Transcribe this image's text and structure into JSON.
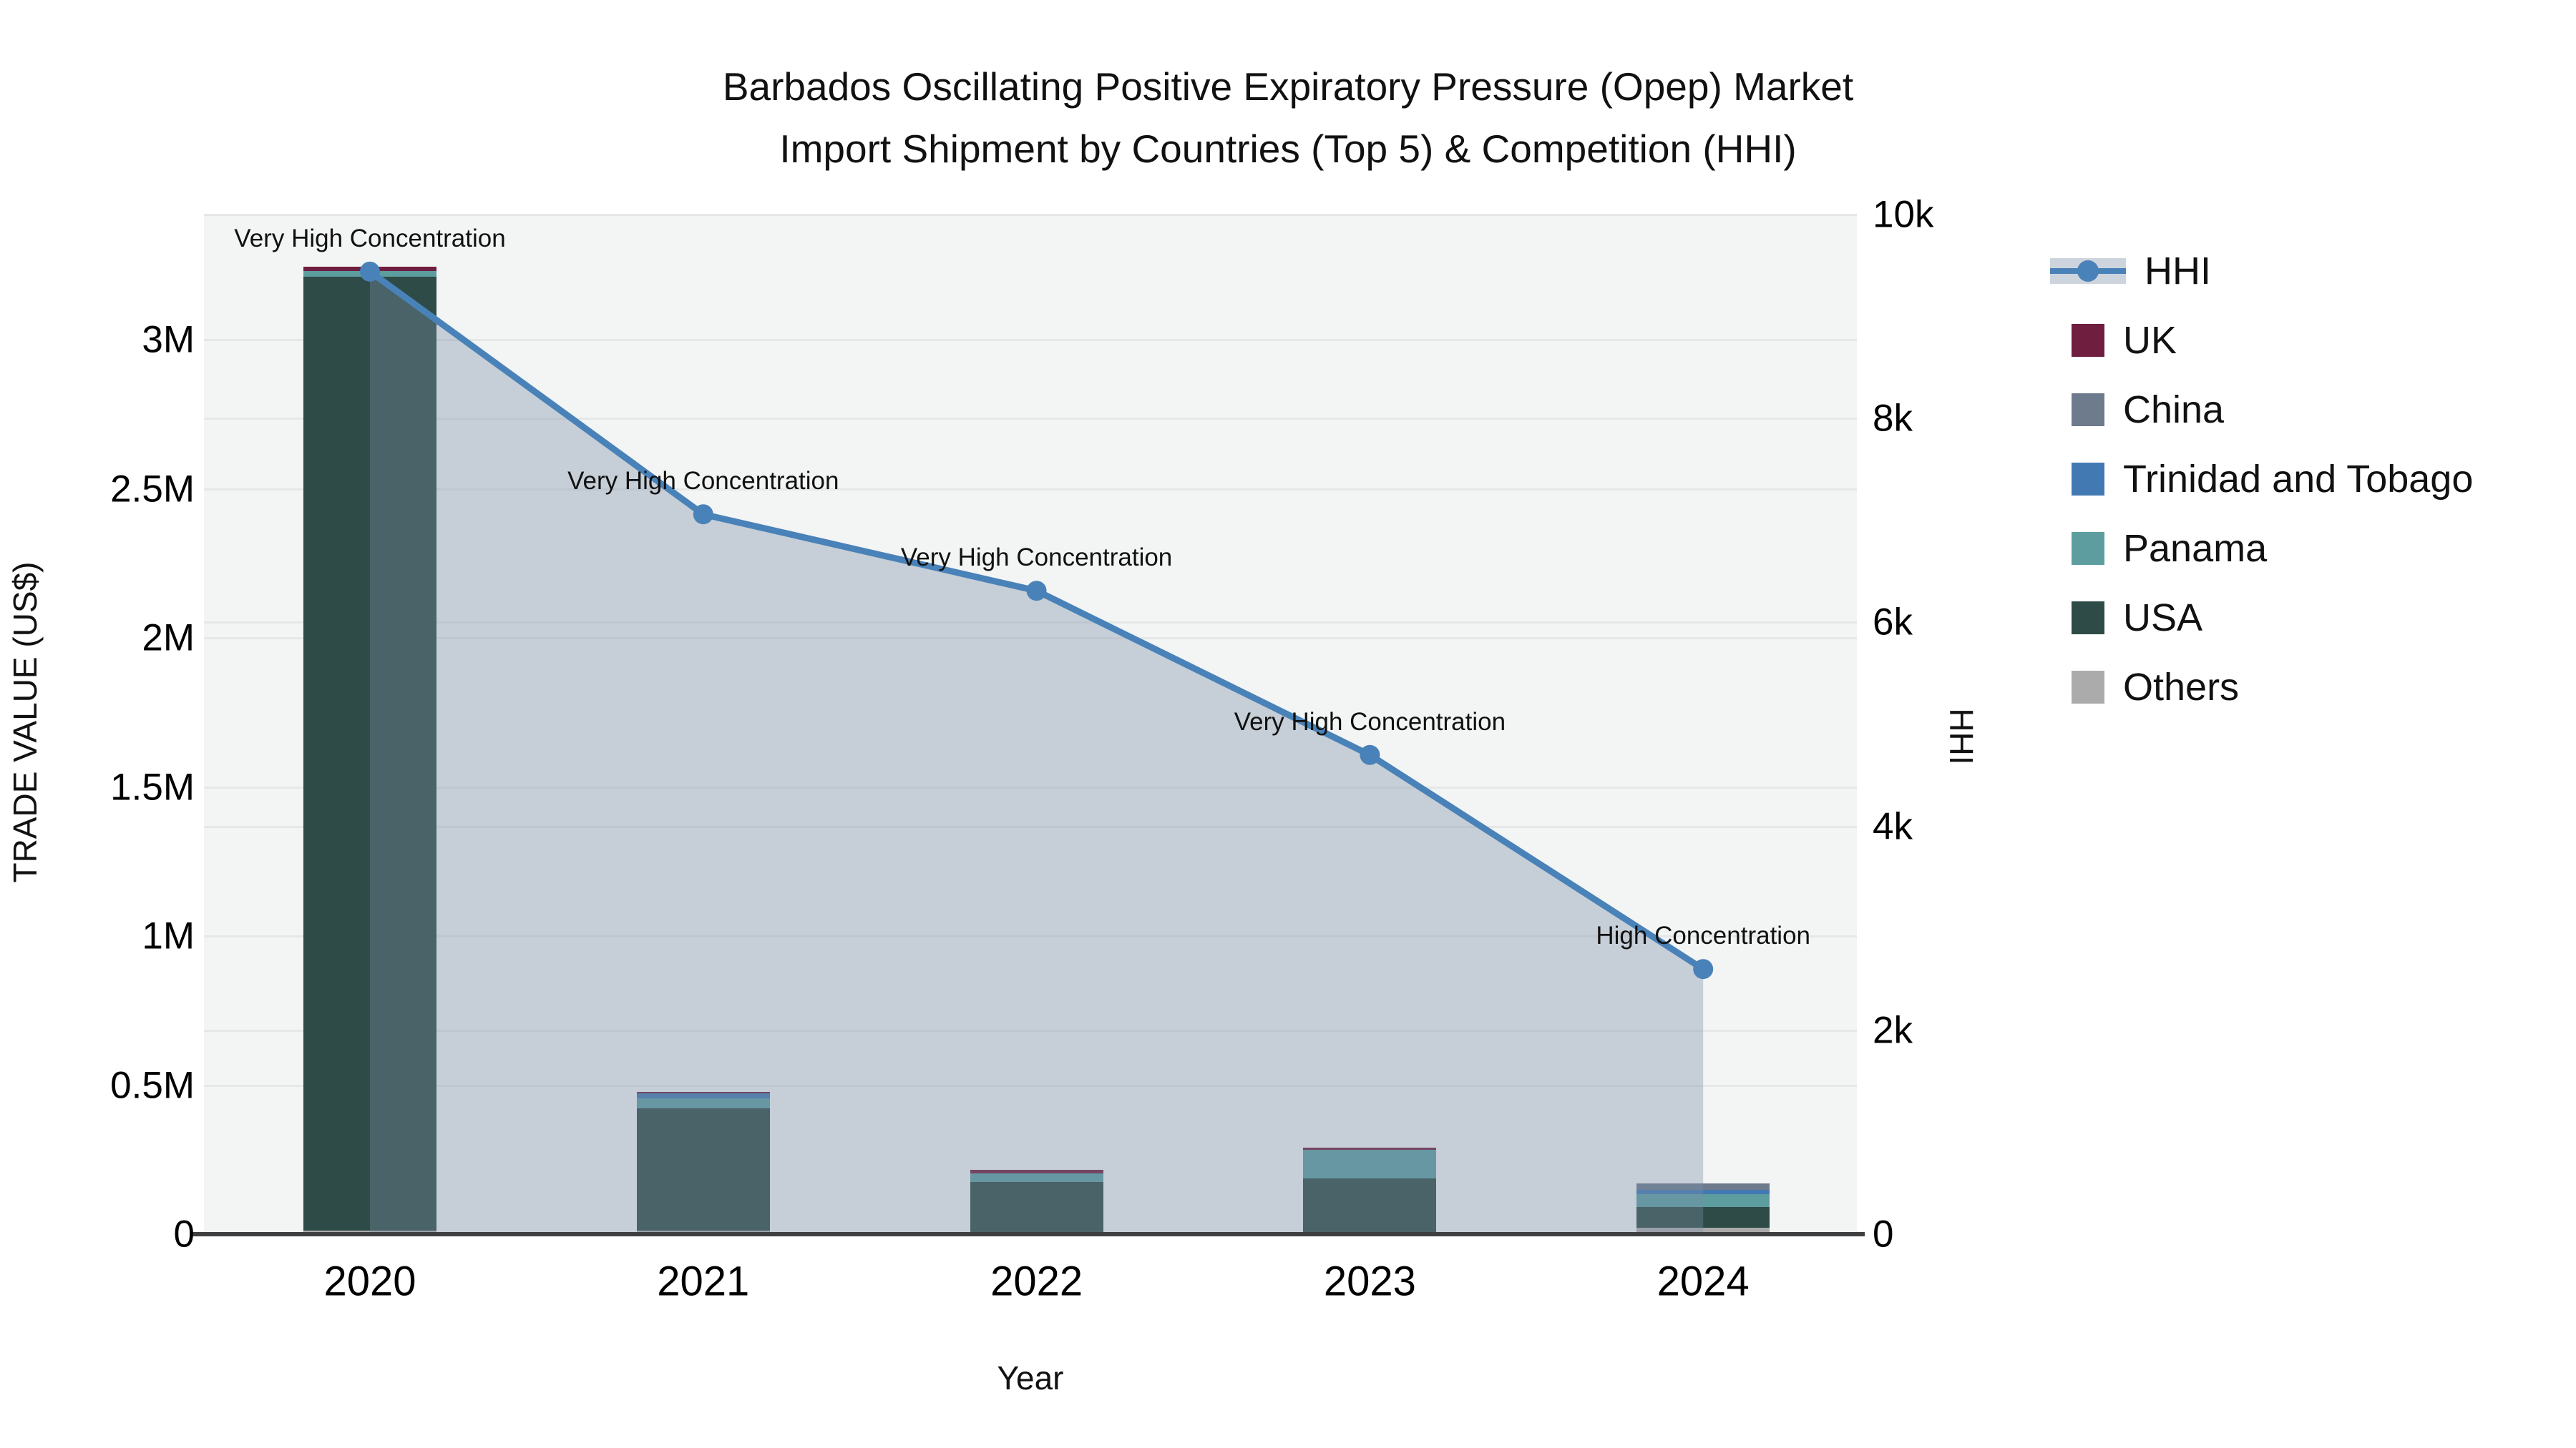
{
  "title": {
    "line1": "Barbados Oscillating Positive Expiratory Pressure (Opep) Market",
    "line2": "Import Shipment by Countries (Top 5) & Competition (HHI)"
  },
  "y_left": {
    "title": "TRADE VALUE (US$)",
    "ticks": [
      {
        "label": "0",
        "value": 0
      },
      {
        "label": "0.5M",
        "value": 500000
      },
      {
        "label": "1M",
        "value": 1000000
      },
      {
        "label": "1.5M",
        "value": 1500000
      },
      {
        "label": "2M",
        "value": 2000000
      },
      {
        "label": "2.5M",
        "value": 2500000
      },
      {
        "label": "3M",
        "value": 3000000
      }
    ],
    "max": 3420000
  },
  "y_right": {
    "title": "HHI",
    "ticks": [
      {
        "label": "0",
        "value": 0
      },
      {
        "label": "2k",
        "value": 2000
      },
      {
        "label": "4k",
        "value": 4000
      },
      {
        "label": "6k",
        "value": 6000
      },
      {
        "label": "8k",
        "value": 8000
      },
      {
        "label": "10k",
        "value": 10000
      }
    ],
    "max": 10000
  },
  "x": {
    "title": "Year"
  },
  "legend": [
    {
      "label": "HHI",
      "color": "#4982b8",
      "type": "line"
    },
    {
      "label": "UK",
      "color": "#6f1e3f",
      "type": "swatch"
    },
    {
      "label": "China",
      "color": "#6d7b8d",
      "type": "swatch"
    },
    {
      "label": "Trinidad and Tobago",
      "color": "#4379b2",
      "type": "swatch"
    },
    {
      "label": "Panama",
      "color": "#5d9da0",
      "type": "swatch"
    },
    {
      "label": "USA",
      "color": "#2e4b47",
      "type": "swatch"
    },
    {
      "label": "Others",
      "color": "#ababab",
      "type": "swatch"
    }
  ],
  "chart_data": {
    "type": "bar+line",
    "categories": [
      "2020",
      "2021",
      "2022",
      "2023",
      "2024"
    ],
    "bar_stack_order_bottom_to_top": [
      "Others",
      "USA",
      "Panama",
      "Trinidad and Tobago",
      "China",
      "UK"
    ],
    "series": [
      {
        "name": "Others",
        "color": "#ababab",
        "values": [
          12000,
          12000,
          3000,
          5000,
          22000
        ]
      },
      {
        "name": "USA",
        "color": "#2e4b47",
        "values": [
          3200000,
          410000,
          173000,
          182000,
          70000
        ]
      },
      {
        "name": "Panama",
        "color": "#5d9da0",
        "values": [
          19000,
          33000,
          29000,
          95000,
          42000
        ]
      },
      {
        "name": "Trinidad and Tobago",
        "color": "#4379b2",
        "values": [
          0,
          17000,
          0,
          0,
          15000
        ]
      },
      {
        "name": "China",
        "color": "#6d7b8d",
        "values": [
          0,
          0,
          0,
          0,
          22000
        ]
      },
      {
        "name": "UK",
        "color": "#6f1e3f",
        "values": [
          14000,
          6000,
          10000,
          9000,
          0
        ]
      }
    ],
    "line_series": {
      "name": "HHI",
      "axis": "right",
      "color": "#4982b8",
      "area_fill": "rgba(122,140,165,0.37)",
      "values": [
        9440,
        7060,
        6310,
        4700,
        2600
      ]
    },
    "annotations": [
      "Very High Concentration",
      "Very High Concentration",
      "Very High Concentration",
      "Very High Concentration",
      "High Concentration"
    ],
    "xlabel": "Year",
    "ylabel_left": "TRADE VALUE (US$)",
    "ylabel_right": "HHI",
    "ylim_left": [
      0,
      3420000
    ],
    "ylim_right": [
      0,
      10000
    ],
    "grid": true,
    "legend_position": "right"
  }
}
